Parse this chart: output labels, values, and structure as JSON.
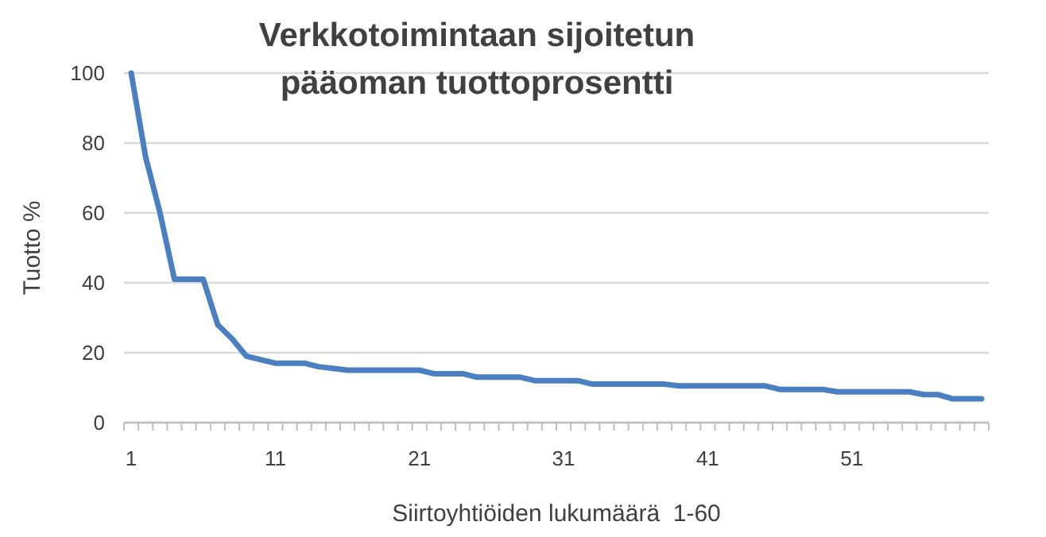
{
  "chart_data": {
    "type": "line",
    "title": "Verkkotoimintaan sijoitetun\npääoman tuottoprosentti",
    "xlabel": "Siirtoyhtiöiden lukumäärä  1-60",
    "ylabel": "Tuotto %",
    "categories": [
      "1",
      null,
      null,
      null,
      null,
      null,
      null,
      null,
      null,
      null,
      "11",
      null,
      null,
      null,
      null,
      null,
      null,
      null,
      null,
      null,
      "21",
      null,
      null,
      null,
      null,
      null,
      null,
      null,
      null,
      null,
      "31",
      null,
      null,
      null,
      null,
      null,
      null,
      null,
      null,
      null,
      "41",
      null,
      null,
      null,
      null,
      null,
      null,
      null,
      null,
      null,
      "51",
      null,
      null,
      null,
      null,
      null,
      null,
      null,
      null,
      null
    ],
    "series": [
      {
        "color": "#4a7fc1",
        "values": [
          100,
          76,
          60,
          41,
          41,
          41,
          28,
          24,
          19,
          18,
          17,
          17,
          17,
          16,
          15.5,
          15,
          15,
          15,
          15,
          15,
          15,
          14,
          14,
          14,
          13,
          13,
          13,
          13,
          12,
          12,
          12,
          12,
          11,
          11,
          11,
          11,
          11,
          11,
          10.5,
          10.5,
          10.5,
          10.5,
          10.5,
          10.5,
          10.5,
          9.5,
          9.5,
          9.5,
          9.5,
          8.8,
          8.8,
          8.8,
          8.8,
          8.8,
          8.8,
          8,
          8,
          6.8,
          6.8,
          6.8
        ]
      }
    ],
    "ylim": [
      0,
      100
    ],
    "yticks": [
      0,
      20,
      40,
      60,
      80,
      100
    ],
    "grid": "y",
    "marker": "none",
    "line_style": "solid"
  }
}
